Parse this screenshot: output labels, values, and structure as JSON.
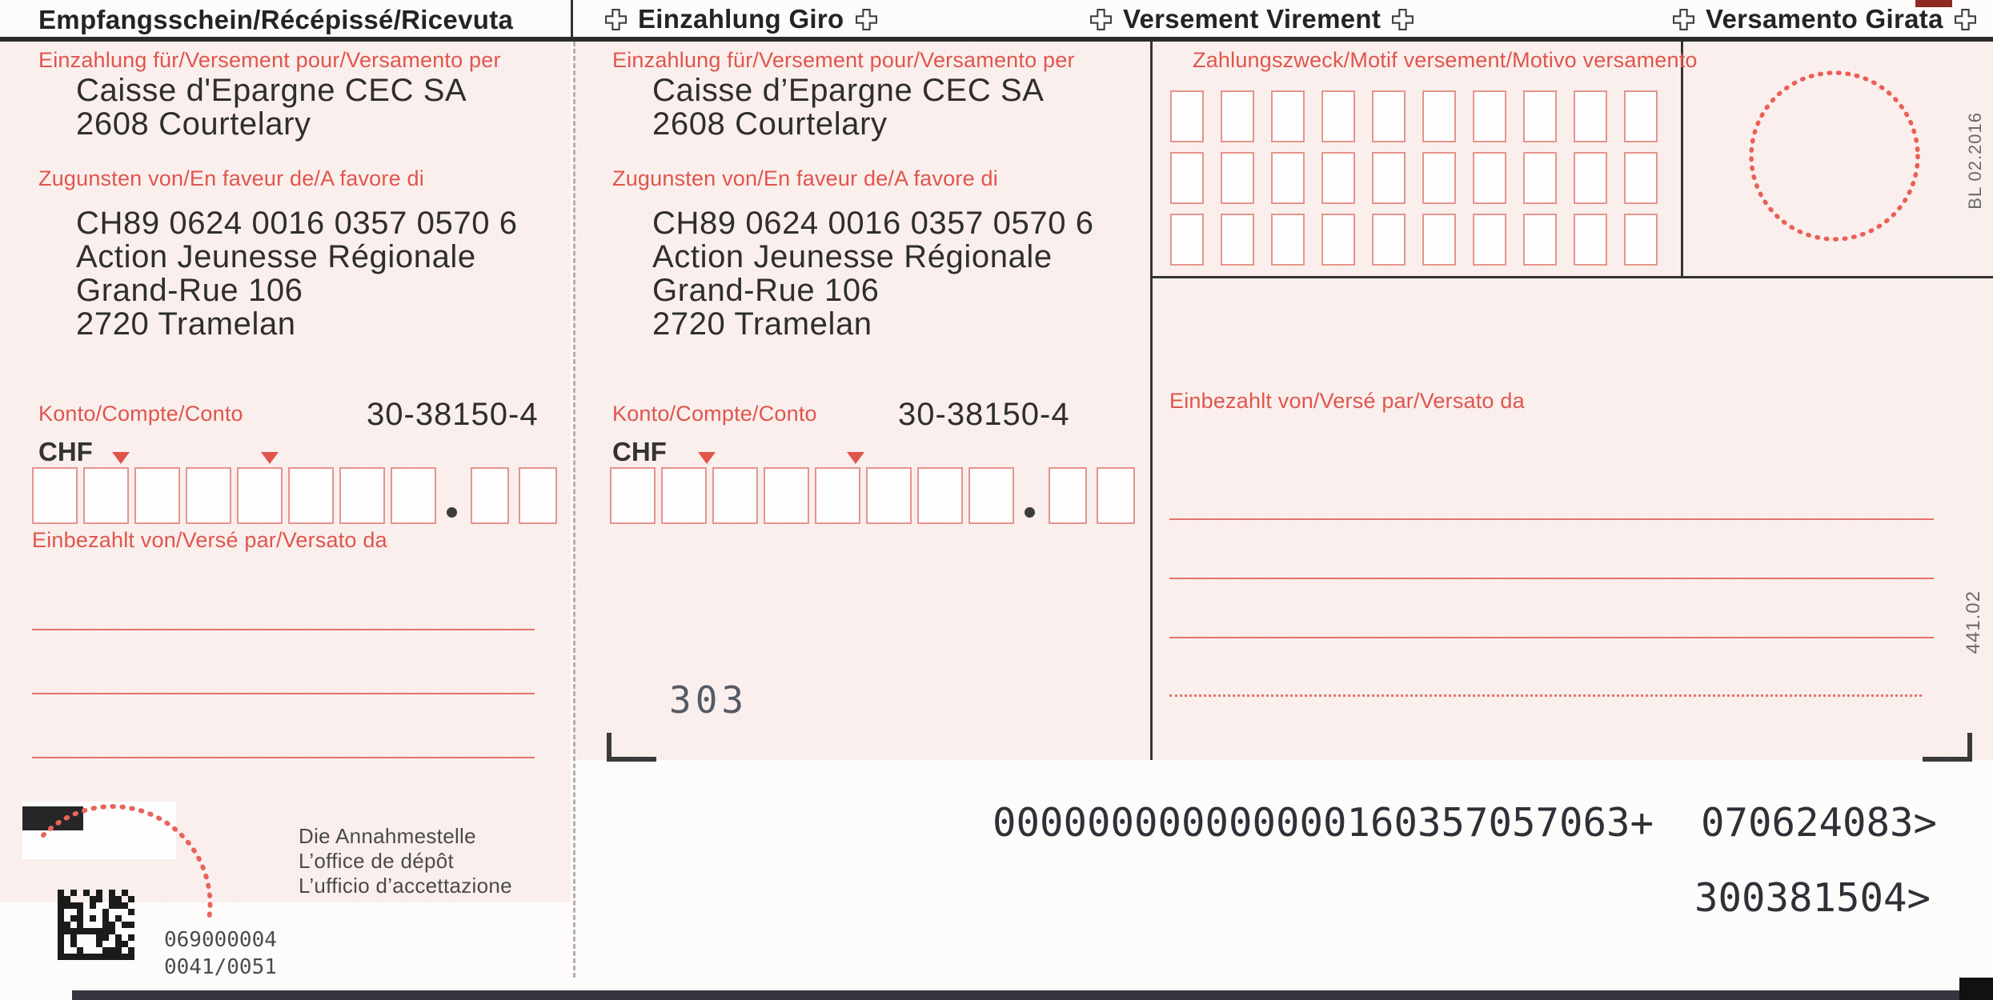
{
  "header": {
    "receipt_title": "Empfangsschein/Récépissé/Ricevuta",
    "giro_title": "Einzahlung Giro",
    "virement_title": "Versement Virement",
    "girata_title": "Versamento Girata"
  },
  "receipt": {
    "deposit_for_label": "Einzahlung für/Versement pour/Versamento per",
    "bank_name": "Caisse d'Epargne CEC SA",
    "bank_city": "2608 Courtelary",
    "in_favour_label": "Zugunsten von/En faveur de/A favore di",
    "iban": "CH89 0624 0016 0357 0570 6",
    "beneficiary_name": "Action Jeunesse Régionale",
    "beneficiary_street": "Grand-Rue 106",
    "beneficiary_city": "2720 Tramelan",
    "account_label": "Konto/Compte/Conto",
    "account_number": "30-38150-4",
    "currency": "CHF",
    "paid_by_label": "Einbezahlt von/Versé par/Versato da",
    "acceptance_lines": [
      "Die Annahmestelle",
      "L’office de dépôt",
      "L’ufficio d’accettazione"
    ],
    "barcode_number": "069000004",
    "barcode_batch": "0041/0051"
  },
  "giro": {
    "deposit_for_label": "Einzahlung für/Versement pour/Versamento per",
    "bank_name": "Caisse d’Epargne CEC SA",
    "bank_city": "2608 Courtelary",
    "in_favour_label": "Zugunsten von/En faveur de/A favore di",
    "iban": "CH89 0624 0016 0357 0570 6",
    "beneficiary_name": "Action Jeunesse Régionale",
    "beneficiary_street": "Grand-Rue 106",
    "beneficiary_city": "2720 Tramelan",
    "account_label": "Konto/Compte/Conto",
    "account_number": "30-38150-4",
    "currency": "CHF",
    "form_number": "303"
  },
  "payment_details": {
    "purpose_label": "Zahlungszweck/Motif versement/Motivo versamento",
    "paid_by_label": "Einbezahlt von/Versé par/Versato da",
    "form_code": "441.02",
    "print_code": "BL 02.2016"
  },
  "ocr": {
    "code_line": "000000000000000160357057063+  070624083>",
    "account_line": "300381504>"
  },
  "form_structure": {
    "amount_integer_boxes": 8,
    "amount_cent_boxes": 2,
    "purpose_grid_rows": 3,
    "purpose_grid_cols": 10
  },
  "colors": {
    "slip_pink": "#f9edeb",
    "label_red": "#e0554c",
    "box_border_red": "#e6948b",
    "line_red": "#e4736b",
    "ink_black": "#2e2e2e",
    "ocr_ink": "#2f3038"
  }
}
